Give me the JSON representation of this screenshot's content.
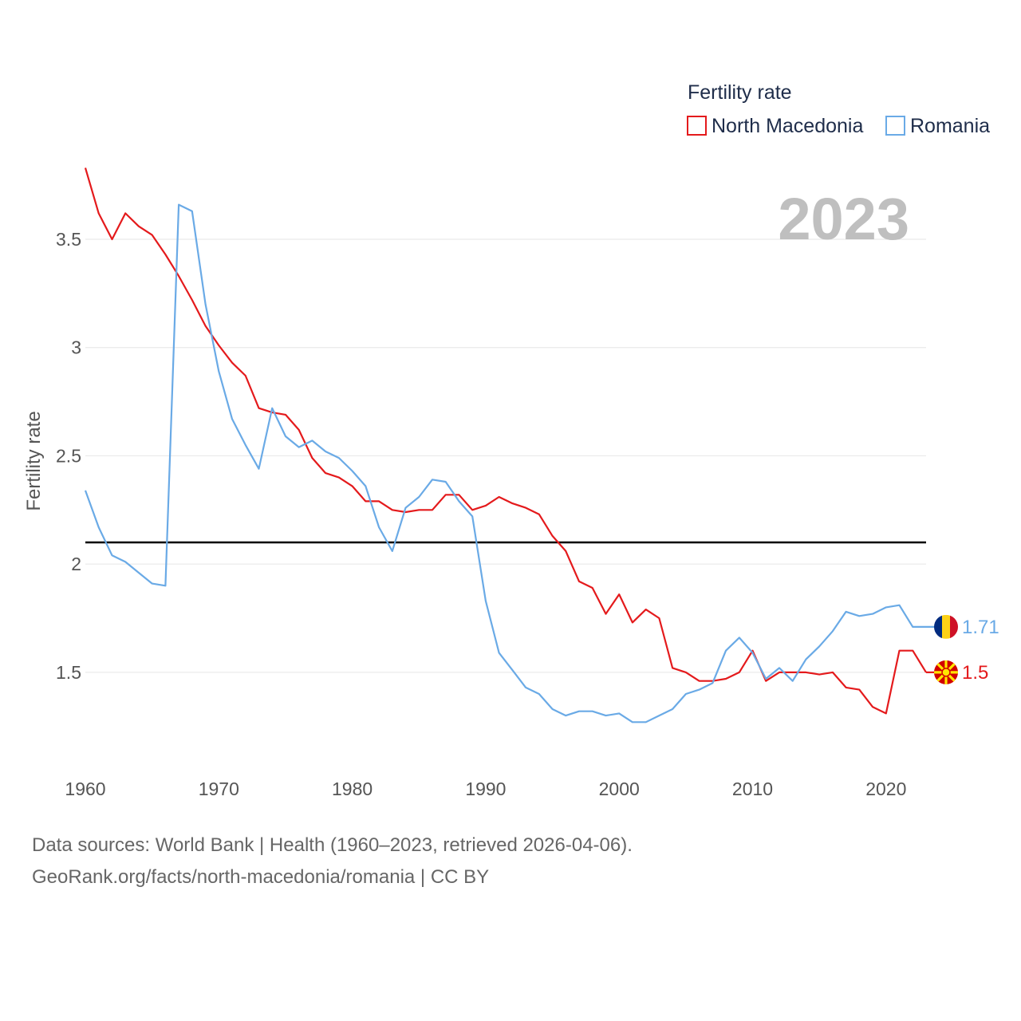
{
  "chart_data": {
    "type": "line",
    "legend_title": "Fertility rate",
    "ylabel": "Fertility rate",
    "year_label": "2023",
    "x_range": [
      1960,
      2023
    ],
    "ylim": [
      1.05,
      3.85
    ],
    "x_ticks": [
      1960,
      1970,
      1980,
      1990,
      2000,
      2010,
      2020
    ],
    "y_ticks": [
      1.5,
      2,
      2.5,
      3,
      3.5
    ],
    "y_tick_labels": [
      "1.5",
      "2",
      "2.5",
      "3",
      "3.5"
    ],
    "reference_line": 2.1,
    "x": [
      1960,
      1961,
      1962,
      1963,
      1964,
      1965,
      1966,
      1967,
      1968,
      1969,
      1970,
      1971,
      1972,
      1973,
      1974,
      1975,
      1976,
      1977,
      1978,
      1979,
      1980,
      1981,
      1982,
      1983,
      1984,
      1985,
      1986,
      1987,
      1988,
      1989,
      1990,
      1991,
      1992,
      1993,
      1994,
      1995,
      1996,
      1997,
      1998,
      1999,
      2000,
      2001,
      2002,
      2003,
      2004,
      2005,
      2006,
      2007,
      2008,
      2009,
      2010,
      2011,
      2012,
      2013,
      2014,
      2015,
      2016,
      2017,
      2018,
      2019,
      2020,
      2021,
      2022,
      2023
    ],
    "series": [
      {
        "name": "North Macedonia",
        "color": "#e41a1c",
        "end_label": "1.5",
        "flag": "north-macedonia-flag-icon",
        "values": [
          3.83,
          3.62,
          3.5,
          3.62,
          3.56,
          3.52,
          3.43,
          3.33,
          3.22,
          3.1,
          3.01,
          2.93,
          2.87,
          2.72,
          2.7,
          2.69,
          2.62,
          2.49,
          2.42,
          2.4,
          2.36,
          2.29,
          2.29,
          2.25,
          2.24,
          2.25,
          2.25,
          2.32,
          2.32,
          2.25,
          2.27,
          2.31,
          2.28,
          2.26,
          2.23,
          2.13,
          2.06,
          1.92,
          1.89,
          1.77,
          1.86,
          1.73,
          1.79,
          1.75,
          1.52,
          1.5,
          1.46,
          1.46,
          1.47,
          1.5,
          1.6,
          1.46,
          1.5,
          1.5,
          1.5,
          1.49,
          1.5,
          1.43,
          1.42,
          1.34,
          1.31,
          1.6,
          1.6,
          1.5
        ]
      },
      {
        "name": "Romania",
        "color": "#6aaae6",
        "end_label": "1.71",
        "flag": "romania-flag-icon",
        "values": [
          2.34,
          2.17,
          2.04,
          2.01,
          1.96,
          1.91,
          1.9,
          3.66,
          3.63,
          3.2,
          2.89,
          2.67,
          2.55,
          2.44,
          2.72,
          2.59,
          2.54,
          2.57,
          2.52,
          2.49,
          2.43,
          2.36,
          2.17,
          2.06,
          2.26,
          2.31,
          2.39,
          2.38,
          2.29,
          2.22,
          1.83,
          1.59,
          1.51,
          1.43,
          1.4,
          1.33,
          1.3,
          1.32,
          1.32,
          1.3,
          1.31,
          1.27,
          1.27,
          1.3,
          1.33,
          1.4,
          1.42,
          1.45,
          1.6,
          1.66,
          1.59,
          1.47,
          1.52,
          1.46,
          1.56,
          1.62,
          1.69,
          1.78,
          1.76,
          1.77,
          1.8,
          1.81,
          1.71,
          1.71
        ]
      }
    ]
  },
  "source": {
    "line1": "Data sources: World Bank | Health (1960–2023, retrieved 2026-04-06).",
    "line2": "GeoRank.org/facts/north-macedonia/romania | CC BY"
  }
}
